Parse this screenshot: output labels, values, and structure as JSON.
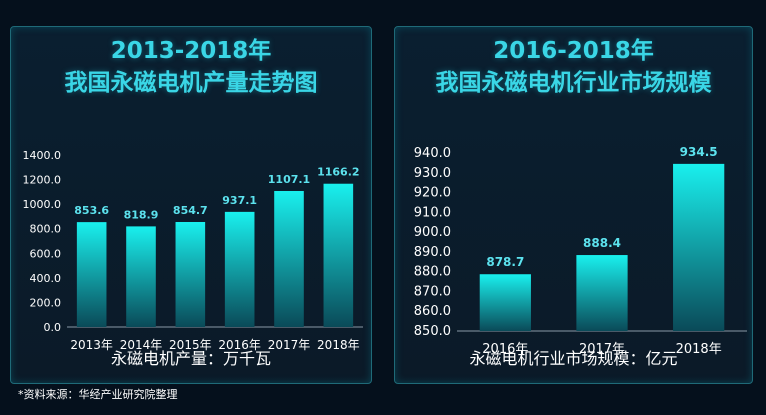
{
  "colors": {
    "accent": "#3ad6e6",
    "bar_top": "#19f0ee",
    "bar_bottom": "#0a4a58",
    "label": "#5ce2ee"
  },
  "source_note": "*资料来源：华经产业研究院整理",
  "chart_data": [
    {
      "type": "bar",
      "title_line1": "2013-2018年",
      "title_line2": "我国永磁电机产量走势图",
      "categories": [
        "2013年",
        "2014年",
        "2015年",
        "2016年",
        "2017年",
        "2018年"
      ],
      "values": [
        853.6,
        818.9,
        854.7,
        937.1,
        1107.1,
        1166.2
      ],
      "value_labels": [
        "853.6",
        "818.9",
        "854.7",
        "937.1",
        "1107.1",
        "1166.2"
      ],
      "ylim": [
        0,
        1400
      ],
      "yticks": [
        "0.0",
        "200.0",
        "400.0",
        "600.0",
        "800.0",
        "1000.0",
        "1200.0",
        "1400.0"
      ],
      "unit_label": "永磁电机产量：万千瓦",
      "grid": false
    },
    {
      "type": "bar",
      "title_line1": "2016-2018年",
      "title_line2": "我国永磁电机行业市场规模",
      "categories": [
        "2016年",
        "2017年",
        "2018年"
      ],
      "values": [
        878.7,
        888.4,
        934.5
      ],
      "value_labels": [
        "878.7",
        "888.4",
        "934.5"
      ],
      "ylim": [
        850,
        940
      ],
      "yticks": [
        "850.0",
        "860.0",
        "870.0",
        "880.0",
        "890.0",
        "900.0",
        "910.0",
        "920.0",
        "930.0",
        "940.0"
      ],
      "unit_label": "永磁电机行业市场规模：亿元",
      "grid": false
    }
  ]
}
